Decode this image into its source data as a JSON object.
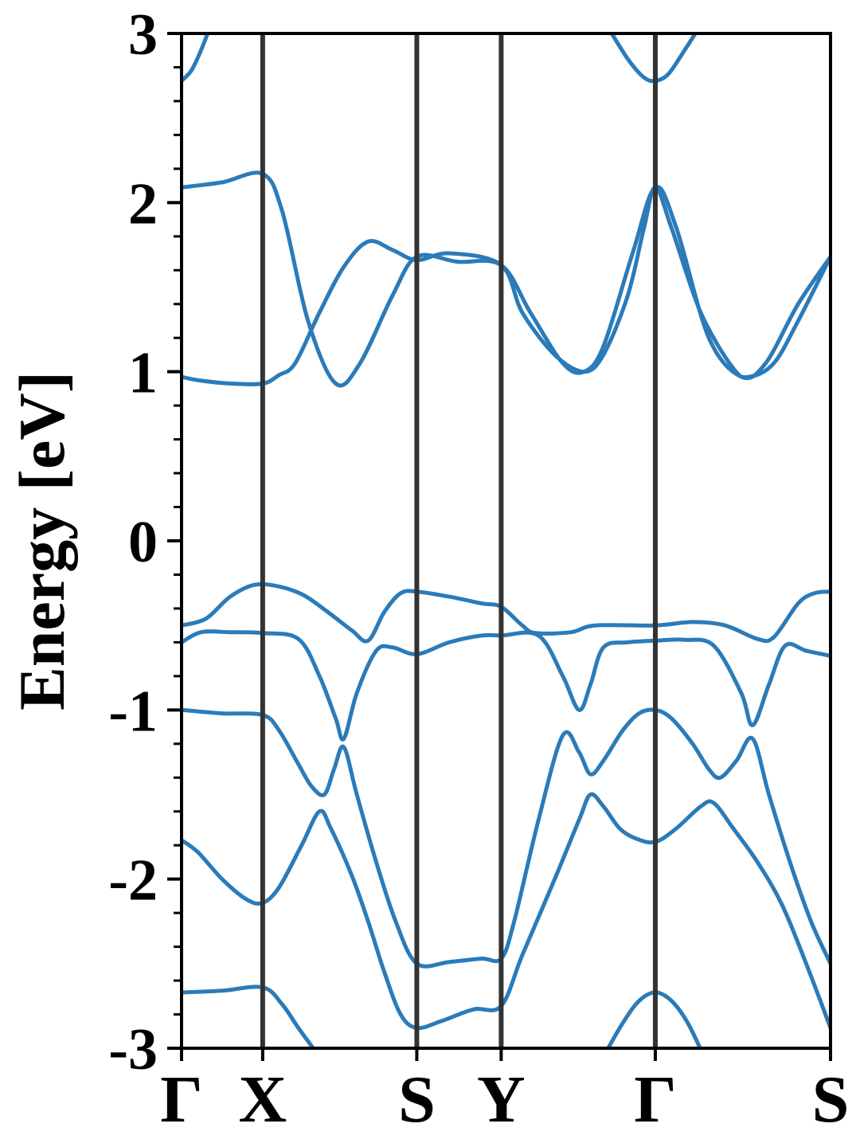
{
  "chart_data": {
    "type": "line",
    "title": "",
    "xlabel": "",
    "ylabel": "Energy [eV]",
    "ylim": [
      -3,
      3
    ],
    "xlim": [
      0,
      4.0
    ],
    "grid": false,
    "legend": "none",
    "colors": {
      "band": "#2b7bb9",
      "kline": "#333333",
      "axis": "#000000"
    },
    "y_ticks": [
      -3,
      -2,
      -1,
      0,
      1,
      2,
      3
    ],
    "y_tick_labels": [
      "-3",
      "-2",
      "-1",
      "0",
      "1",
      "2",
      "3"
    ],
    "y_minor_step": 0.2,
    "k_points": [
      {
        "label": "Γ",
        "x": 0.0
      },
      {
        "label": "X",
        "x": 0.5
      },
      {
        "label": "S",
        "x": 1.45
      },
      {
        "label": "Y",
        "x": 1.97
      },
      {
        "label": "Γ",
        "x": 2.92
      },
      {
        "label": "S",
        "x": 4.0
      }
    ],
    "series": [
      {
        "values": [
          [
            0,
            -2.67
          ],
          [
            0.25,
            -2.66
          ],
          [
            0.5,
            -2.64
          ],
          [
            0.62,
            -2.74
          ],
          [
            0.72,
            -2.88
          ],
          [
            0.85,
            -3.05
          ]
        ]
      },
      {
        "values": [
          [
            2.6,
            -3.05
          ],
          [
            2.72,
            -2.85
          ],
          [
            2.82,
            -2.72
          ],
          [
            2.92,
            -2.67
          ],
          [
            3.02,
            -2.72
          ],
          [
            3.12,
            -2.85
          ],
          [
            3.22,
            -3.05
          ]
        ]
      },
      {
        "values": [
          [
            0,
            -1.77
          ],
          [
            0.1,
            -1.84
          ],
          [
            0.25,
            -2.0
          ],
          [
            0.4,
            -2.12
          ],
          [
            0.5,
            -2.14
          ],
          [
            0.6,
            -2.05
          ],
          [
            0.74,
            -1.8
          ],
          [
            0.85,
            -1.6
          ],
          [
            0.92,
            -1.7
          ],
          [
            1.05,
            -1.98
          ],
          [
            1.15,
            -2.25
          ],
          [
            1.25,
            -2.55
          ],
          [
            1.35,
            -2.8
          ],
          [
            1.45,
            -2.88
          ],
          [
            1.6,
            -2.84
          ],
          [
            1.8,
            -2.77
          ],
          [
            1.97,
            -2.75
          ],
          [
            2.1,
            -2.45
          ],
          [
            2.3,
            -2.0
          ],
          [
            2.45,
            -1.65
          ],
          [
            2.52,
            -1.5
          ],
          [
            2.6,
            -1.57
          ],
          [
            2.7,
            -1.7
          ],
          [
            2.8,
            -1.76
          ],
          [
            2.92,
            -1.78
          ],
          [
            3.05,
            -1.7
          ],
          [
            3.2,
            -1.57
          ],
          [
            3.28,
            -1.55
          ],
          [
            3.4,
            -1.7
          ],
          [
            3.55,
            -1.9
          ],
          [
            3.7,
            -2.15
          ],
          [
            3.85,
            -2.5
          ],
          [
            4.0,
            -2.88
          ]
        ]
      },
      {
        "values": [
          [
            0,
            -1.0
          ],
          [
            0.25,
            -1.02
          ],
          [
            0.5,
            -1.03
          ],
          [
            0.6,
            -1.12
          ],
          [
            0.72,
            -1.32
          ],
          [
            0.8,
            -1.45
          ],
          [
            0.88,
            -1.5
          ],
          [
            0.94,
            -1.35
          ],
          [
            1.0,
            -1.22
          ],
          [
            1.08,
            -1.5
          ],
          [
            1.2,
            -1.9
          ],
          [
            1.32,
            -2.25
          ],
          [
            1.45,
            -2.5
          ],
          [
            1.65,
            -2.49
          ],
          [
            1.85,
            -2.47
          ],
          [
            1.97,
            -2.47
          ],
          [
            2.05,
            -2.25
          ],
          [
            2.2,
            -1.65
          ],
          [
            2.35,
            -1.15
          ],
          [
            2.45,
            -1.25
          ],
          [
            2.52,
            -1.38
          ],
          [
            2.6,
            -1.3
          ],
          [
            2.72,
            -1.12
          ],
          [
            2.82,
            -1.02
          ],
          [
            2.92,
            -1.0
          ],
          [
            3.02,
            -1.05
          ],
          [
            3.15,
            -1.2
          ],
          [
            3.25,
            -1.35
          ],
          [
            3.32,
            -1.4
          ],
          [
            3.42,
            -1.3
          ],
          [
            3.52,
            -1.17
          ],
          [
            3.62,
            -1.5
          ],
          [
            3.75,
            -1.9
          ],
          [
            3.88,
            -2.25
          ],
          [
            4.0,
            -2.5
          ]
        ]
      },
      {
        "values": [
          [
            0,
            -0.6
          ],
          [
            0.12,
            -0.54
          ],
          [
            0.3,
            -0.54
          ],
          [
            0.5,
            -0.545
          ],
          [
            0.72,
            -0.58
          ],
          [
            0.85,
            -0.8
          ],
          [
            0.95,
            -1.05
          ],
          [
            1.0,
            -1.17
          ],
          [
            1.08,
            -0.9
          ],
          [
            1.2,
            -0.65
          ],
          [
            1.3,
            -0.63
          ],
          [
            1.45,
            -0.67
          ],
          [
            1.65,
            -0.6
          ],
          [
            1.85,
            -0.56
          ],
          [
            1.97,
            -0.56
          ],
          [
            2.2,
            -0.56
          ],
          [
            2.35,
            -0.8
          ],
          [
            2.45,
            -1.0
          ],
          [
            2.52,
            -0.85
          ],
          [
            2.6,
            -0.63
          ],
          [
            2.75,
            -0.6
          ],
          [
            2.92,
            -0.59
          ],
          [
            3.1,
            -0.585
          ],
          [
            3.28,
            -0.62
          ],
          [
            3.45,
            -0.9
          ],
          [
            3.52,
            -1.09
          ],
          [
            3.62,
            -0.85
          ],
          [
            3.72,
            -0.62
          ],
          [
            3.85,
            -0.65
          ],
          [
            4.0,
            -0.68
          ]
        ]
      },
      {
        "values": [
          [
            0,
            -0.5
          ],
          [
            0.15,
            -0.46
          ],
          [
            0.3,
            -0.33
          ],
          [
            0.45,
            -0.26
          ],
          [
            0.6,
            -0.27
          ],
          [
            0.75,
            -0.32
          ],
          [
            0.9,
            -0.42
          ],
          [
            1.05,
            -0.53
          ],
          [
            1.15,
            -0.59
          ],
          [
            1.25,
            -0.42
          ],
          [
            1.35,
            -0.31
          ],
          [
            1.45,
            -0.3
          ],
          [
            1.65,
            -0.33
          ],
          [
            1.85,
            -0.37
          ],
          [
            1.97,
            -0.39
          ],
          [
            2.1,
            -0.5
          ],
          [
            2.18,
            -0.545
          ],
          [
            2.4,
            -0.54
          ],
          [
            2.55,
            -0.5
          ],
          [
            2.92,
            -0.5
          ],
          [
            3.15,
            -0.48
          ],
          [
            3.35,
            -0.5
          ],
          [
            3.55,
            -0.58
          ],
          [
            3.65,
            -0.57
          ],
          [
            3.8,
            -0.37
          ],
          [
            3.9,
            -0.31
          ],
          [
            4.0,
            -0.3
          ]
        ]
      },
      {
        "values": [
          [
            0,
            0.97
          ],
          [
            0.1,
            0.95
          ],
          [
            0.3,
            0.93
          ],
          [
            0.5,
            0.93
          ],
          [
            0.6,
            0.98
          ],
          [
            0.7,
            1.05
          ],
          [
            0.85,
            1.35
          ],
          [
            1.0,
            1.62
          ],
          [
            1.15,
            1.77
          ],
          [
            1.3,
            1.72
          ],
          [
            1.45,
            1.66
          ],
          [
            1.65,
            1.7
          ],
          [
            1.97,
            1.63
          ],
          [
            2.1,
            1.35
          ],
          [
            2.3,
            1.1
          ],
          [
            2.48,
            1.0
          ],
          [
            2.6,
            1.1
          ],
          [
            2.75,
            1.45
          ],
          [
            2.85,
            1.85
          ],
          [
            2.92,
            2.09
          ],
          [
            3.02,
            1.85
          ],
          [
            3.2,
            1.35
          ],
          [
            3.4,
            1.02
          ],
          [
            3.5,
            0.97
          ],
          [
            3.65,
            1.05
          ],
          [
            3.8,
            1.3
          ],
          [
            4.0,
            1.68
          ]
        ]
      },
      {
        "values": [
          [
            0,
            2.09
          ],
          [
            0.25,
            2.12
          ],
          [
            0.5,
            2.17
          ],
          [
            0.62,
            1.95
          ],
          [
            0.78,
            1.3
          ],
          [
            0.95,
            0.93
          ],
          [
            1.1,
            1.05
          ],
          [
            1.3,
            1.45
          ],
          [
            1.45,
            1.68
          ],
          [
            1.7,
            1.65
          ],
          [
            1.97,
            1.63
          ],
          [
            2.15,
            1.35
          ],
          [
            2.35,
            1.05
          ],
          [
            2.48,
            1.0
          ],
          [
            2.6,
            1.15
          ],
          [
            2.78,
            1.7
          ],
          [
            2.92,
            2.09
          ],
          [
            3.05,
            1.85
          ],
          [
            3.25,
            1.2
          ],
          [
            3.45,
            0.97
          ],
          [
            3.6,
            1.05
          ],
          [
            3.8,
            1.4
          ],
          [
            4.0,
            1.68
          ]
        ]
      },
      {
        "values": [
          [
            0,
            2.72
          ],
          [
            0.06,
            2.78
          ],
          [
            0.12,
            2.9
          ],
          [
            0.18,
            3.05
          ]
        ]
      },
      {
        "values": [
          [
            2.62,
            3.05
          ],
          [
            2.75,
            2.85
          ],
          [
            2.85,
            2.74
          ],
          [
            2.92,
            2.72
          ],
          [
            3.0,
            2.76
          ],
          [
            3.1,
            2.9
          ],
          [
            3.2,
            3.05
          ]
        ]
      }
    ]
  }
}
